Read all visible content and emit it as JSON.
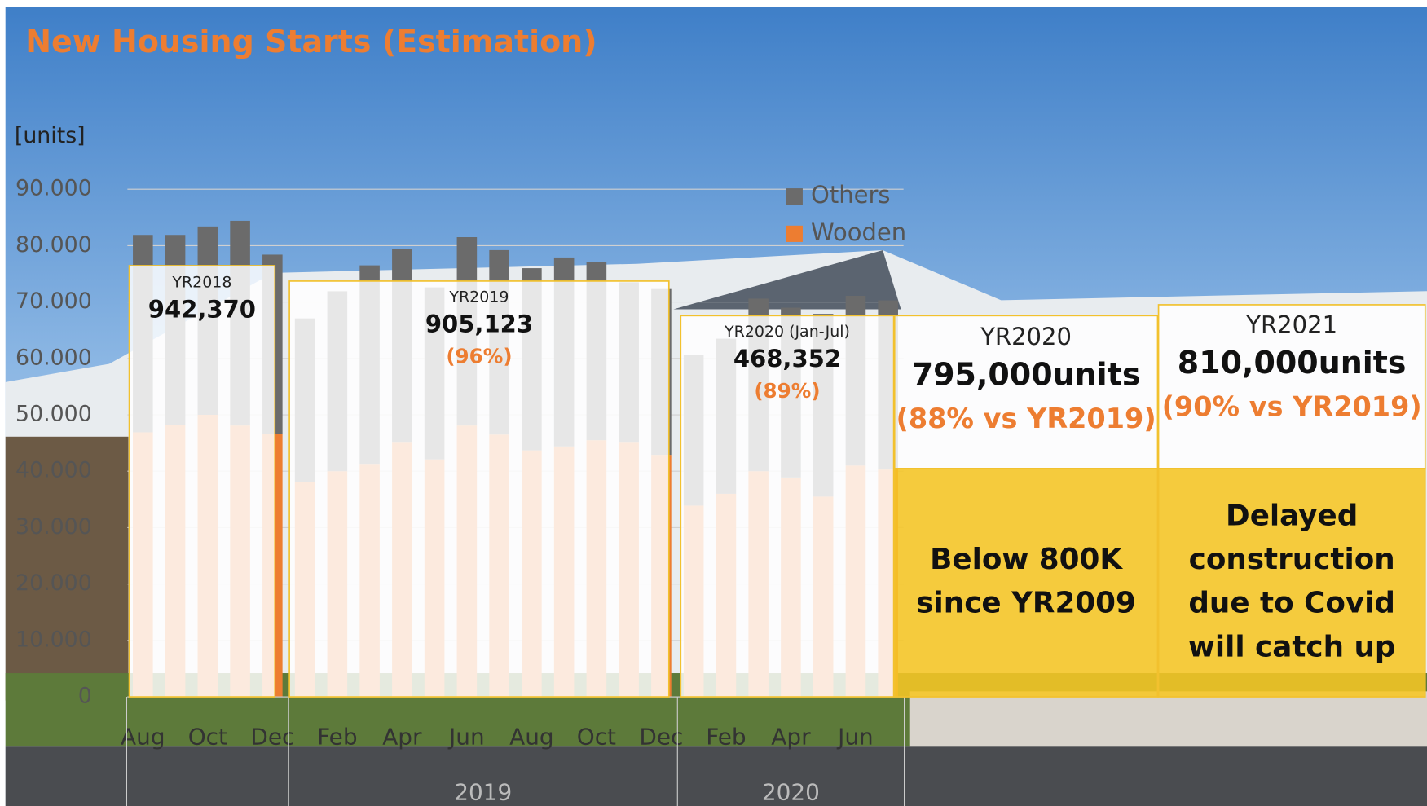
{
  "chart_data": {
    "type": "stacked_bar",
    "title": "New Housing Starts (Estimation)",
    "y_label": "[units]",
    "categories": [
      "Aug",
      null,
      "Oct",
      null,
      "Dec",
      null,
      "Feb",
      null,
      "Apr",
      null,
      "Jun",
      null,
      "Aug",
      null,
      "Oct",
      null,
      "Dec",
      null,
      "Feb",
      null,
      "Apr",
      null,
      "Jun",
      null
    ],
    "year_groups": [
      "2019",
      "2020"
    ],
    "series": [
      {
        "name": "Others",
        "color": "#6b6b6b",
        "values": [
          35000,
          33700,
          33400,
          36300,
          31800,
          29000,
          31900,
          35200,
          34200,
          30500,
          33400,
          32700,
          32300,
          33500,
          31600,
          28300,
          29400,
          26700,
          27500,
          30600,
          30100,
          32400,
          30100,
          30000
        ]
      },
      {
        "name": "Wooden",
        "color": "#ed7d31",
        "values": [
          46900,
          48200,
          50000,
          48100,
          46600,
          38100,
          40000,
          41300,
          45200,
          42100,
          48100,
          46500,
          43700,
          44400,
          45500,
          45200,
          42900,
          33900,
          36000,
          40000,
          38900,
          35500,
          41000,
          40300
        ]
      }
    ],
    "ylim": [
      0,
      90000
    ],
    "yticks": [
      0,
      {
        "value": 10000,
        "label": "10.000"
      },
      {
        "value": 20000,
        "label": "20.000"
      },
      {
        "value": 30000,
        "label": "30.000"
      },
      {
        "value": 40000,
        "label": "40.000"
      },
      {
        "value": 50000,
        "label": "50.000"
      },
      {
        "value": 60000,
        "label": "60.000"
      },
      {
        "value": 70000,
        "label": "70.000"
      },
      {
        "value": 80000,
        "label": "80.000"
      },
      {
        "value": 90000,
        "label": "90.000"
      }
    ],
    "grid": true,
    "legend": "top-center",
    "annotations": [
      {
        "label": "YR2018",
        "value": "942,370"
      },
      {
        "label": "YR2019",
        "value": "905,123",
        "note": "(96%)"
      },
      {
        "label": "YR2020 (Jan-Jul)",
        "value": "468,352",
        "note": "(89%)"
      },
      {
        "label": "YR2020",
        "value": "795,000units",
        "note": "(88% vs YR2019)",
        "comment": [
          "Below 800K",
          "since YR2009"
        ]
      },
      {
        "label": "YR2021",
        "value": "810,000units",
        "note": "(90% vs YR2019)",
        "comment": [
          "Delayed",
          "construction",
          "due to Covid",
          "will catch up"
        ]
      }
    ]
  }
}
